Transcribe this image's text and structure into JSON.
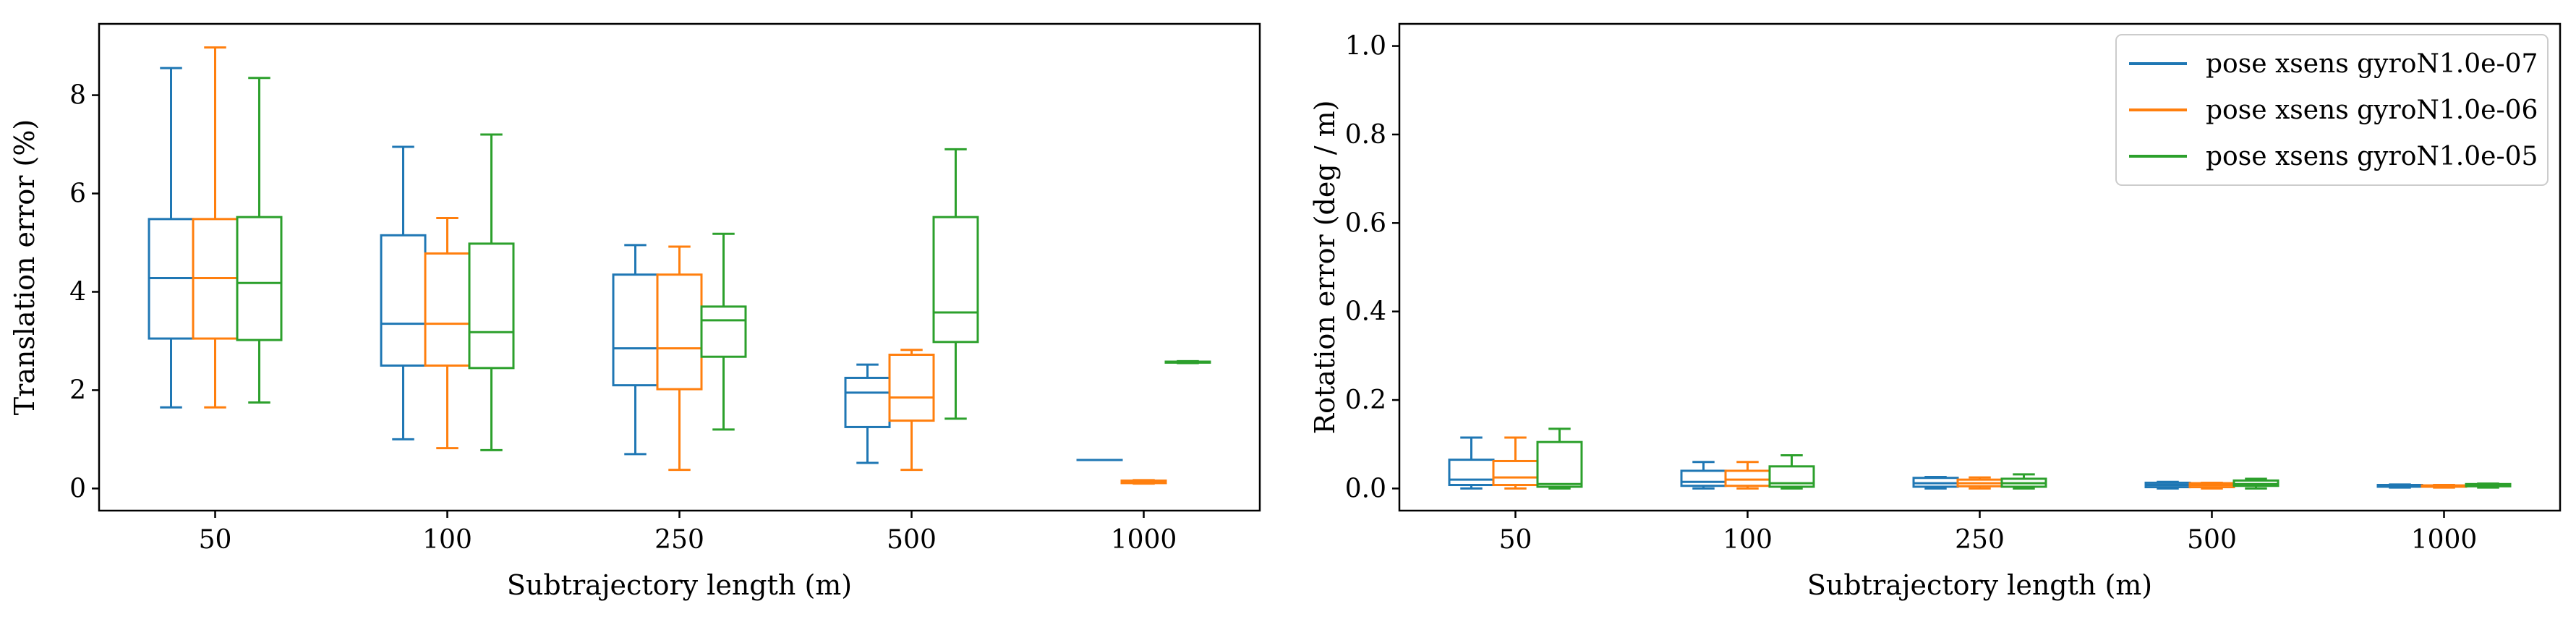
{
  "chart_data": [
    {
      "type": "box",
      "xlabel": "Subtrajectory length (m)",
      "ylabel": "Translation error (%)",
      "categories": [
        "50",
        "100",
        "250",
        "500",
        "1000"
      ],
      "ylim": [
        -0.45,
        9.45
      ],
      "yticks": [
        "0",
        "2",
        "4",
        "6",
        "8"
      ],
      "ytick_values": [
        0,
        2,
        4,
        6,
        8
      ],
      "grid": false,
      "legend": "none",
      "series": [
        {
          "color": "#1f77b4",
          "boxes": [
            {
              "whisker_low": 1.65,
              "q1": 3.05,
              "median": 4.28,
              "q3": 5.48,
              "whisker_high": 8.55
            },
            {
              "whisker_low": 1.0,
              "q1": 2.5,
              "median": 3.35,
              "q3": 5.15,
              "whisker_high": 6.95
            },
            {
              "whisker_low": 0.7,
              "q1": 2.1,
              "median": 2.85,
              "q3": 4.35,
              "whisker_high": 4.95
            },
            {
              "whisker_low": 0.52,
              "q1": 1.25,
              "median": 1.95,
              "q3": 2.25,
              "whisker_high": 2.52
            },
            {
              "whisker_low": 0.58,
              "q1": 0.58,
              "median": 0.58,
              "q3": 0.58,
              "whisker_high": 0.58
            }
          ]
        },
        {
          "color": "#ff7f0e",
          "boxes": [
            {
              "whisker_low": 1.65,
              "q1": 3.05,
              "median": 4.28,
              "q3": 5.48,
              "whisker_high": 8.97
            },
            {
              "whisker_low": 0.82,
              "q1": 2.5,
              "median": 3.35,
              "q3": 4.78,
              "whisker_high": 5.5
            },
            {
              "whisker_low": 0.38,
              "q1": 2.02,
              "median": 2.85,
              "q3": 4.35,
              "whisker_high": 4.92
            },
            {
              "whisker_low": 0.38,
              "q1": 1.38,
              "median": 1.85,
              "q3": 2.72,
              "whisker_high": 2.82
            },
            {
              "whisker_low": 0.1,
              "q1": 0.11,
              "median": 0.14,
              "q3": 0.16,
              "whisker_high": 0.17
            }
          ]
        },
        {
          "color": "#2ca02c",
          "boxes": [
            {
              "whisker_low": 1.75,
              "q1": 3.02,
              "median": 4.18,
              "q3": 5.52,
              "whisker_high": 8.35
            },
            {
              "whisker_low": 0.78,
              "q1": 2.45,
              "median": 3.18,
              "q3": 4.98,
              "whisker_high": 7.2
            },
            {
              "whisker_low": 1.2,
              "q1": 2.68,
              "median": 3.42,
              "q3": 3.7,
              "whisker_high": 5.18
            },
            {
              "whisker_low": 1.42,
              "q1": 2.98,
              "median": 3.58,
              "q3": 5.52,
              "whisker_high": 6.9
            },
            {
              "whisker_low": 2.55,
              "q1": 2.56,
              "median": 2.57,
              "q3": 2.58,
              "whisker_high": 2.59
            }
          ]
        }
      ]
    },
    {
      "type": "box",
      "xlabel": "Subtrajectory length (m)",
      "ylabel": "Rotation error (deg / m)",
      "categories": [
        "50",
        "100",
        "250",
        "500",
        "1000"
      ],
      "ylim": [
        -0.05,
        1.05
      ],
      "yticks": [
        "0.0",
        "0.2",
        "0.4",
        "0.6",
        "0.8",
        "1.0"
      ],
      "ytick_values": [
        0,
        0.2,
        0.4,
        0.6,
        0.8,
        1.0
      ],
      "grid": false,
      "legend": "top-right",
      "series": [
        {
          "name": "pose xsens gyroN1.0e-07",
          "color": "#1f77b4",
          "boxes": [
            {
              "whisker_low": 0.0,
              "q1": 0.008,
              "median": 0.02,
              "q3": 0.065,
              "whisker_high": 0.115
            },
            {
              "whisker_low": 0.0,
              "q1": 0.006,
              "median": 0.015,
              "q3": 0.04,
              "whisker_high": 0.06
            },
            {
              "whisker_low": 0.0,
              "q1": 0.004,
              "median": 0.012,
              "q3": 0.024,
              "whisker_high": 0.026
            },
            {
              "whisker_low": 0.0,
              "q1": 0.003,
              "median": 0.008,
              "q3": 0.013,
              "whisker_high": 0.015
            },
            {
              "whisker_low": 0.002,
              "q1": 0.004,
              "median": 0.006,
              "q3": 0.008,
              "whisker_high": 0.009
            }
          ]
        },
        {
          "name": "pose xsens gyroN1.0e-06",
          "color": "#ff7f0e",
          "boxes": [
            {
              "whisker_low": 0.0,
              "q1": 0.008,
              "median": 0.025,
              "q3": 0.062,
              "whisker_high": 0.115
            },
            {
              "whisker_low": 0.0,
              "q1": 0.006,
              "median": 0.02,
              "q3": 0.04,
              "whisker_high": 0.06
            },
            {
              "whisker_low": 0.0,
              "q1": 0.005,
              "median": 0.012,
              "q3": 0.02,
              "whisker_high": 0.025
            },
            {
              "whisker_low": 0.0,
              "q1": 0.003,
              "median": 0.008,
              "q3": 0.012,
              "whisker_high": 0.013
            },
            {
              "whisker_low": 0.002,
              "q1": 0.004,
              "median": 0.006,
              "q3": 0.007,
              "whisker_high": 0.008
            }
          ]
        },
        {
          "name": "pose xsens gyroN1.0e-05",
          "color": "#2ca02c",
          "boxes": [
            {
              "whisker_low": 0.0,
              "q1": 0.004,
              "median": 0.01,
              "q3": 0.105,
              "whisker_high": 0.135
            },
            {
              "whisker_low": 0.0,
              "q1": 0.004,
              "median": 0.012,
              "q3": 0.05,
              "whisker_high": 0.075
            },
            {
              "whisker_low": 0.0,
              "q1": 0.004,
              "median": 0.012,
              "q3": 0.022,
              "whisker_high": 0.032
            },
            {
              "whisker_low": 0.0,
              "q1": 0.006,
              "median": 0.01,
              "q3": 0.018,
              "whisker_high": 0.022
            },
            {
              "whisker_low": 0.002,
              "q1": 0.005,
              "median": 0.008,
              "q3": 0.01,
              "whisker_high": 0.011
            }
          ]
        }
      ]
    }
  ]
}
